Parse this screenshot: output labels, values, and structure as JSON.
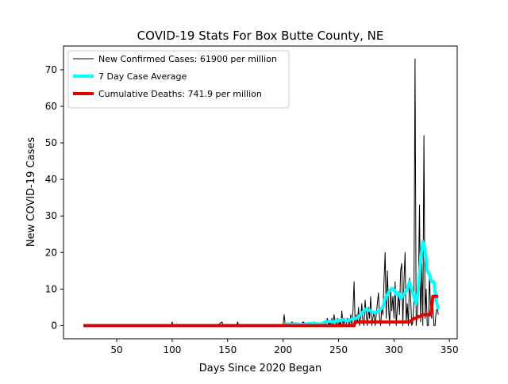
{
  "chart_data": {
    "type": "line",
    "title": "COVID-19 Stats For Box Butte County, NE",
    "xlabel": "Days Since 2020 Began",
    "ylabel": "New COVID-19 Cases",
    "xlim": [
      2,
      357
    ],
    "ylim": [
      -3.6,
      76.5
    ],
    "xticks": [
      50,
      100,
      150,
      200,
      250,
      300,
      350
    ],
    "yticks": [
      0,
      10,
      20,
      30,
      40,
      50,
      60,
      70
    ],
    "grid": false,
    "legend_position": "top-left",
    "series": [
      {
        "name": "New Confirmed Cases: 61900 per million",
        "color": "#000000",
        "line_width": 1,
        "x": [
          20,
          60,
          99,
          100,
          101,
          140,
          145,
          146,
          150,
          158,
          159,
          160,
          190,
          200,
          201,
          202,
          206,
          208,
          212,
          216,
          218,
          222,
          226,
          228,
          232,
          236,
          238,
          240,
          241,
          242,
          243,
          244,
          245,
          246,
          247,
          248,
          249,
          250,
          251,
          252,
          253,
          254,
          255,
          256,
          257,
          258,
          259,
          260,
          261,
          262,
          263,
          264,
          265,
          266,
          267,
          268,
          269,
          270,
          271,
          272,
          273,
          274,
          275,
          276,
          277,
          278,
          279,
          280,
          281,
          282,
          283,
          284,
          285,
          286,
          287,
          288,
          289,
          290,
          291,
          292,
          293,
          294,
          295,
          296,
          297,
          298,
          299,
          300,
          301,
          302,
          303,
          304,
          305,
          306,
          307,
          308,
          309,
          310,
          311,
          312,
          313,
          314,
          315,
          316,
          317,
          318,
          319,
          320,
          321,
          322,
          323,
          324,
          325,
          326,
          327,
          328,
          329,
          330,
          331,
          332,
          333,
          334,
          335,
          336,
          337,
          338,
          339,
          340
        ],
        "y": [
          0,
          0,
          0,
          1,
          0,
          0,
          1,
          0,
          0,
          0,
          1,
          0,
          0,
          0,
          3,
          0,
          0,
          1,
          0,
          0,
          1,
          0,
          0,
          1,
          0,
          1,
          0,
          2,
          0,
          1,
          0,
          2,
          0,
          3,
          1,
          0,
          2,
          0,
          1,
          0,
          4,
          0,
          2,
          0,
          0,
          2,
          1,
          0,
          3,
          0,
          4,
          12,
          0,
          3,
          1,
          5,
          0,
          2,
          6,
          1,
          0,
          7,
          3,
          0,
          5,
          2,
          8,
          0,
          2,
          4,
          0,
          3,
          6,
          9,
          2,
          0,
          5,
          3,
          12,
          20,
          2,
          15,
          6,
          0,
          10,
          4,
          8,
          2,
          12,
          0,
          5,
          9,
          3,
          15,
          17,
          0,
          12,
          20,
          1,
          6,
          0,
          13,
          8,
          0,
          1,
          7,
          73,
          0,
          3,
          10,
          33,
          1,
          17,
          0,
          52,
          2,
          10,
          0,
          0,
          14,
          4,
          2,
          6,
          0,
          0,
          4,
          5,
          3
        ]
      },
      {
        "name": "7 Day Case Average",
        "color": "#00ffff",
        "line_width": 4,
        "x": [
          20,
          200,
          204,
          208,
          212,
          218,
          222,
          228,
          234,
          238,
          242,
          246,
          250,
          254,
          258,
          262,
          266,
          270,
          274,
          278,
          282,
          286,
          290,
          292,
          294,
          296,
          298,
          300,
          302,
          304,
          306,
          308,
          310,
          312,
          314,
          316,
          318,
          320,
          322,
          324,
          326,
          328,
          330,
          332,
          334,
          336,
          338,
          340
        ],
        "y": [
          0,
          0,
          0.5,
          0.3,
          0.5,
          0.2,
          0.5,
          0.6,
          0.4,
          1.0,
          1.2,
          1.0,
          1.4,
          1.6,
          1.3,
          1.8,
          2.0,
          3.0,
          4.5,
          4.2,
          3.5,
          4.0,
          5.0,
          7.5,
          8.5,
          9.5,
          10.2,
          9.8,
          8.5,
          9.0,
          7.5,
          8.0,
          9.0,
          10.0,
          12.0,
          10.0,
          8.0,
          6.0,
          10.0,
          18.0,
          23.0,
          21.0,
          15.0,
          14.0,
          12.0,
          12.0,
          7.0,
          4.5
        ]
      },
      {
        "name": "Cumulative Deaths: 741.9 per million",
        "color": "#e50000",
        "line_width": 4,
        "x": [
          20,
          264,
          265,
          300,
          314,
          316,
          318,
          320,
          322,
          324,
          326,
          328,
          330,
          332,
          333,
          334,
          335,
          336,
          337,
          338,
          339,
          340
        ],
        "y": [
          0,
          0,
          1,
          1,
          1,
          1.5,
          2,
          2,
          2.5,
          2.5,
          3,
          3,
          3,
          3,
          3,
          5,
          8,
          8,
          8,
          8,
          8,
          8
        ]
      }
    ]
  }
}
